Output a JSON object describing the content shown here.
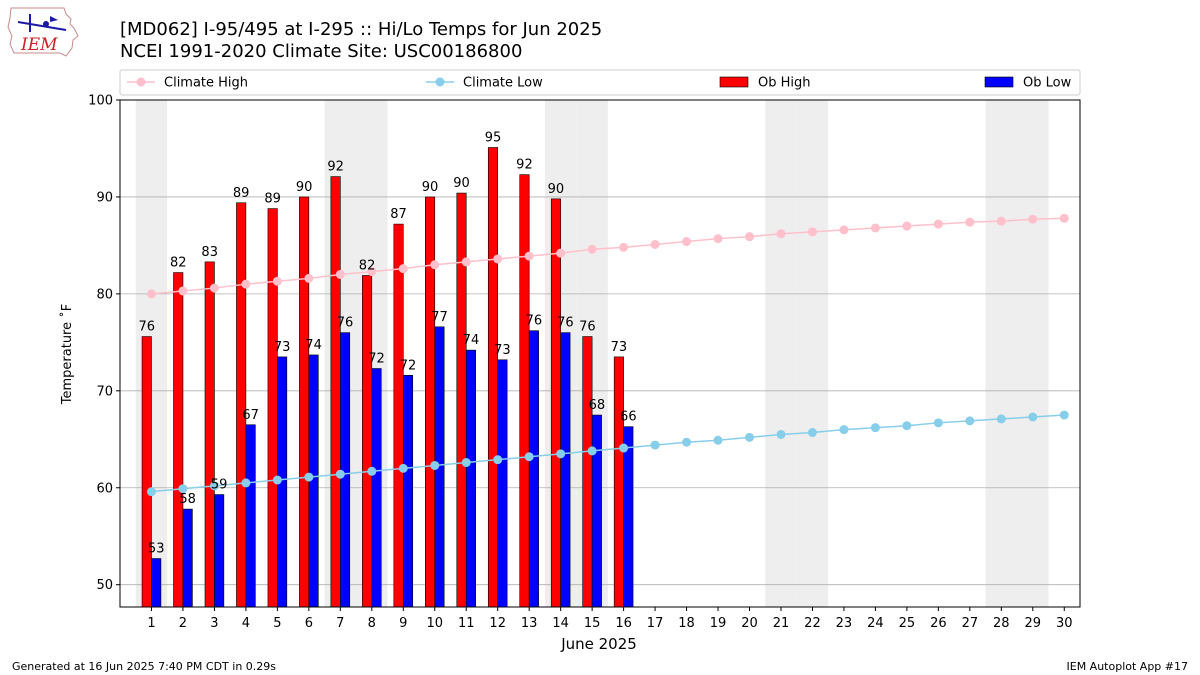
{
  "header": {
    "title_line1": "[MD062] I-95/495 at I-295  :: Hi/Lo Temps for Jun 2025",
    "title_line2": "NCEI 1991-2020 Climate Site: USC00186800"
  },
  "logo": {
    "text": "IEM"
  },
  "footer": {
    "generated": "Generated at 16 Jun 2025 7:40 PM CDT in 0.29s",
    "app": "IEM Autoplot App #17"
  },
  "colors": {
    "ob_high": "#ff0000",
    "ob_low": "#0000ff",
    "climate_high": "#ffc0cb",
    "climate_low": "#87ceeb",
    "weekend_shade": "#eeeeee",
    "grid": "#b0b0b0"
  },
  "chart_data": {
    "type": "bar",
    "xlabel": "June 2025",
    "ylabel": "Temperature $^\\circ$F",
    "ylim": [
      47.7,
      100
    ],
    "yticks": [
      50,
      60,
      70,
      80,
      90,
      100
    ],
    "grid": true,
    "legend_position": "top",
    "days": [
      1,
      2,
      3,
      4,
      5,
      6,
      7,
      8,
      9,
      10,
      11,
      12,
      13,
      14,
      15,
      16,
      17,
      18,
      19,
      20,
      21,
      22,
      23,
      24,
      25,
      26,
      27,
      28,
      29,
      30
    ],
    "weekend_days": [
      1,
      7,
      8,
      14,
      15,
      21,
      22,
      28,
      29
    ],
    "series": [
      {
        "name": "Climate High",
        "kind": "line",
        "values": [
          80.0,
          80.3,
          80.6,
          81.0,
          81.3,
          81.6,
          82.0,
          82.3,
          82.6,
          83.0,
          83.3,
          83.6,
          83.9,
          84.2,
          84.6,
          84.8,
          85.1,
          85.4,
          85.7,
          85.9,
          86.2,
          86.4,
          86.6,
          86.8,
          87.0,
          87.2,
          87.4,
          87.5,
          87.7,
          87.8
        ]
      },
      {
        "name": "Climate Low",
        "kind": "line",
        "values": [
          59.6,
          59.9,
          60.2,
          60.5,
          60.8,
          61.1,
          61.4,
          61.7,
          62.0,
          62.3,
          62.6,
          62.9,
          63.2,
          63.5,
          63.8,
          64.1,
          64.4,
          64.7,
          64.9,
          65.2,
          65.5,
          65.7,
          66.0,
          66.2,
          66.4,
          66.7,
          66.9,
          67.1,
          67.3,
          67.5
        ]
      },
      {
        "name": "Ob High",
        "kind": "bar",
        "values": [
          75.6,
          82.2,
          83.3,
          89.4,
          88.8,
          90.0,
          92.1,
          81.9,
          87.2,
          90.0,
          90.4,
          95.1,
          92.3,
          89.8,
          75.6,
          73.5
        ],
        "labels": [
          "76",
          "82",
          "83",
          "89",
          "89",
          "90",
          "92",
          "82",
          "87",
          "90",
          "90",
          "95",
          "92",
          "90",
          "76",
          "73"
        ]
      },
      {
        "name": "Ob Low",
        "kind": "bar",
        "values": [
          52.7,
          57.8,
          59.3,
          66.5,
          73.5,
          73.7,
          76.0,
          72.3,
          71.6,
          76.6,
          74.2,
          73.2,
          76.2,
          76.0,
          67.5,
          66.3
        ],
        "labels": [
          "53",
          "58",
          "59",
          "67",
          "73",
          "74",
          "76",
          "72",
          "72",
          "77",
          "74",
          "73",
          "76",
          "76",
          "68",
          "66"
        ]
      }
    ]
  }
}
